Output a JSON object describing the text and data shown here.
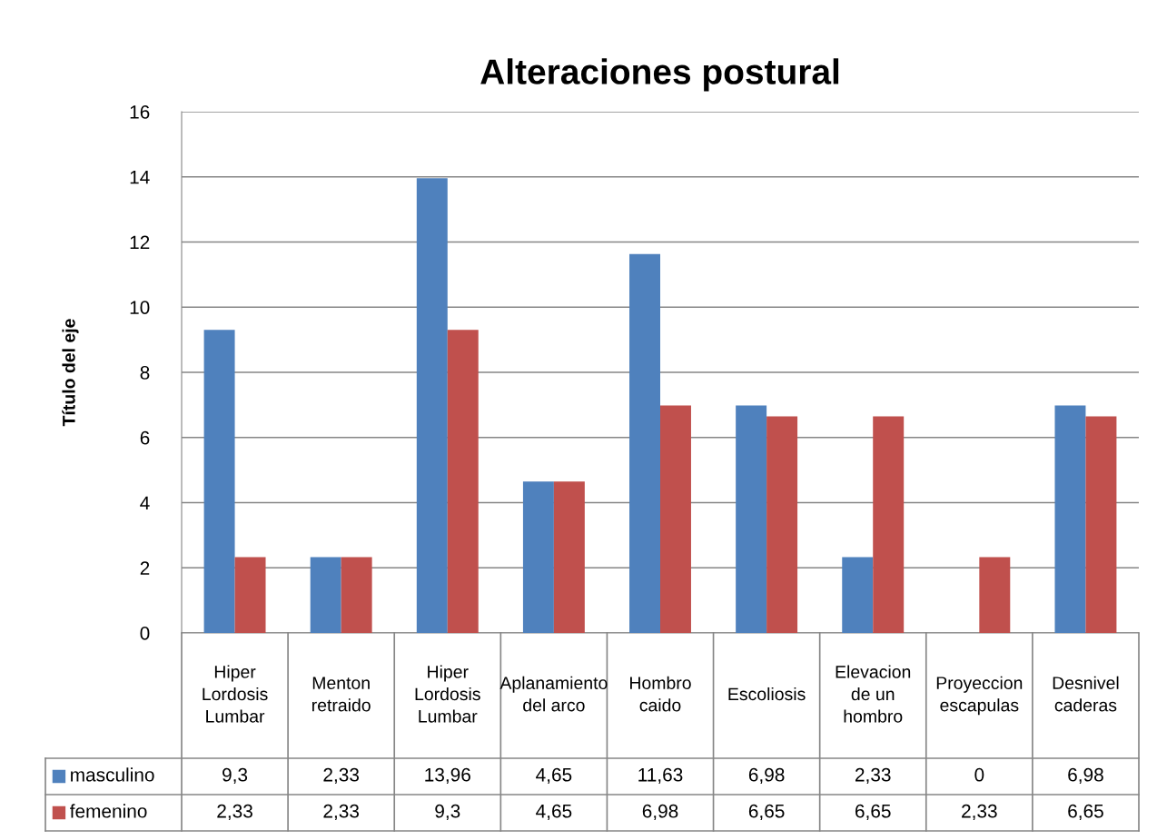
{
  "chart_data": {
    "type": "bar",
    "title": "Alteraciones postural",
    "ylabel": "Título del eje",
    "categories": [
      "Hiper Lordosis Lumbar",
      "Menton retraido",
      "Hiper Lordosis Lumbar",
      "Aplanamiento del arco",
      "Hombro caido",
      "Escoliosis",
      "Elevacion de un hombro",
      "Proyeccion escapulas",
      "Desnivel caderas"
    ],
    "series": [
      {
        "name": "masculino",
        "color": "#4f81bd",
        "values": [
          9.3,
          2.33,
          13.96,
          4.65,
          11.63,
          6.98,
          2.33,
          0,
          6.98
        ],
        "value_labels": [
          "9,3",
          "2,33",
          "13,96",
          "4,65",
          "11,63",
          "6,98",
          "2,33",
          "0",
          "6,98"
        ]
      },
      {
        "name": "femenino",
        "color": "#c0504d",
        "values": [
          2.33,
          2.33,
          9.3,
          4.65,
          6.98,
          6.65,
          6.65,
          2.33,
          6.65
        ],
        "value_labels": [
          "2,33",
          "2,33",
          "9,3",
          "4,65",
          "6,98",
          "6,65",
          "6,65",
          "2,33",
          "6,65"
        ]
      }
    ],
    "ylim": [
      0,
      16
    ],
    "yticks": [
      0,
      2,
      4,
      6,
      8,
      10,
      12,
      14,
      16
    ],
    "grid": "y",
    "legend": "bottom left"
  }
}
